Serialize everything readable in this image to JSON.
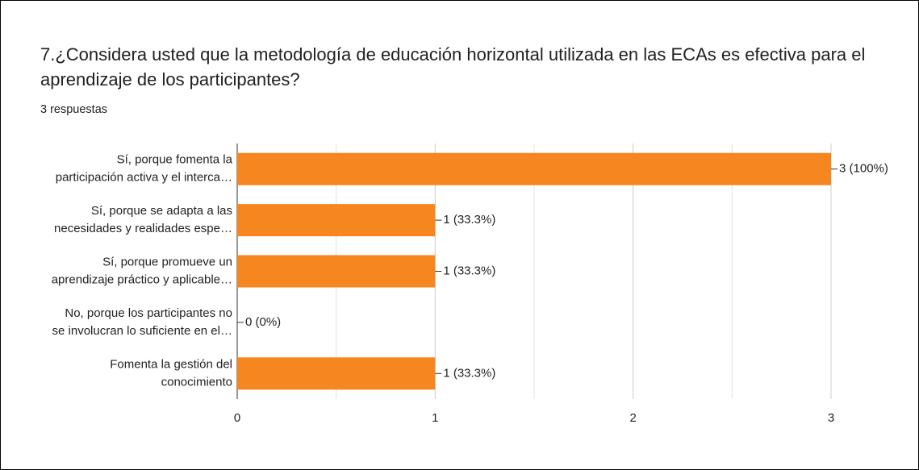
{
  "chart_data": {
    "type": "bar",
    "orientation": "horizontal",
    "title": "7.¿Considera usted que la metodología de educación horizontal utilizada en las ECAs  es efectiva para el aprendizaje de los participantes?",
    "subtitle": "3 respuestas",
    "categories": [
      [
        "Sí, porque fomenta la",
        "participación activa y el interca…"
      ],
      [
        "Sí, porque se adapta a las",
        "necesidades y realidades espe…"
      ],
      [
        "Sí, porque promueve un",
        "aprendizaje práctico y aplicable…"
      ],
      [
        "No, porque los participantes no",
        "se involucran lo suficiente en el…"
      ],
      [
        "Fomenta la gestión del",
        "conocimiento"
      ]
    ],
    "values": [
      3,
      1,
      1,
      0,
      1
    ],
    "value_labels": [
      "3 (100%)",
      "1 (33.3%)",
      "1 (33.3%)",
      "0 (0%)",
      "1 (33.3%)"
    ],
    "color": "#f6861f",
    "xlim": [
      0,
      3
    ],
    "xticks": [
      0,
      1,
      2,
      3
    ],
    "minor_xticks": [
      0.5,
      1.5,
      2.5
    ],
    "grid": true
  }
}
